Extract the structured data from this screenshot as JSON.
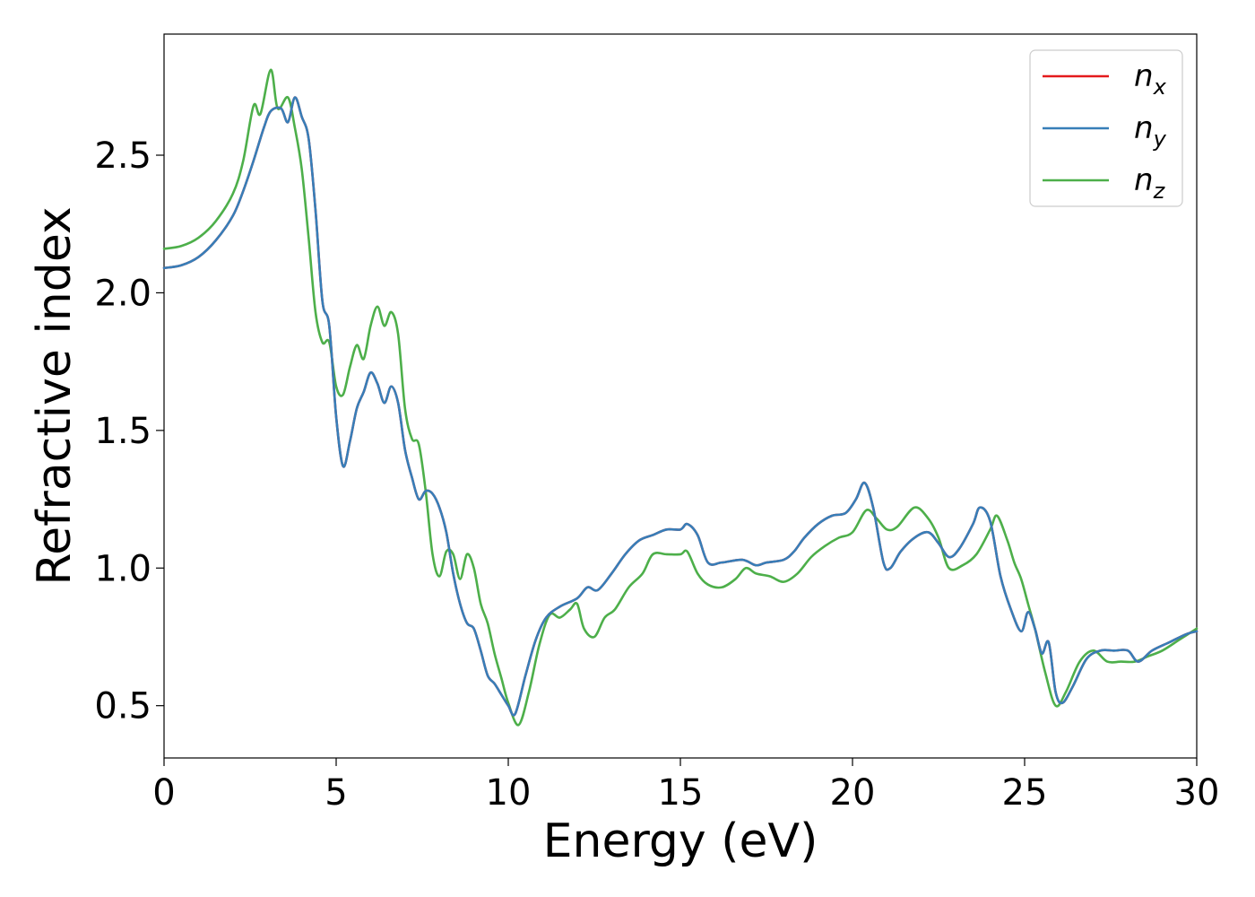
{
  "chart_data": {
    "type": "line",
    "title": "",
    "xlabel": "Energy (eV)",
    "ylabel": "Refractive index",
    "xlim": [
      0,
      30
    ],
    "ylim": [
      0.31,
      2.94
    ],
    "xticks": [
      0,
      5,
      10,
      15,
      20,
      25,
      30
    ],
    "yticks": [
      0.5,
      1.0,
      1.5,
      2.0,
      2.5
    ],
    "xtick_labels": [
      "0",
      "5",
      "10",
      "15",
      "20",
      "25",
      "30"
    ],
    "ytick_labels": [
      "0.5",
      "1.0",
      "1.5",
      "2.0",
      "2.5"
    ],
    "grid": false,
    "legend_position": "top-right",
    "series": [
      {
        "name": "n_x",
        "label_main": "n",
        "label_sub": "x",
        "color": "#e41a1c",
        "points": [
          [
            0,
            2.09
          ],
          [
            0.5,
            2.1
          ],
          [
            1,
            2.13
          ],
          [
            1.5,
            2.19
          ],
          [
            2,
            2.28
          ],
          [
            2.3,
            2.37
          ],
          [
            2.6,
            2.48
          ],
          [
            2.9,
            2.6
          ],
          [
            3.1,
            2.66
          ],
          [
            3.4,
            2.67
          ],
          [
            3.6,
            2.62
          ],
          [
            3.8,
            2.71
          ],
          [
            4.0,
            2.64
          ],
          [
            4.2,
            2.56
          ],
          [
            4.4,
            2.3
          ],
          [
            4.6,
            1.97
          ],
          [
            4.8,
            1.88
          ],
          [
            5.0,
            1.55
          ],
          [
            5.2,
            1.37
          ],
          [
            5.4,
            1.46
          ],
          [
            5.6,
            1.58
          ],
          [
            5.8,
            1.64
          ],
          [
            6.0,
            1.71
          ],
          [
            6.2,
            1.67
          ],
          [
            6.4,
            1.6
          ],
          [
            6.6,
            1.66
          ],
          [
            6.8,
            1.6
          ],
          [
            7.0,
            1.43
          ],
          [
            7.2,
            1.33
          ],
          [
            7.4,
            1.25
          ],
          [
            7.6,
            1.28
          ],
          [
            7.8,
            1.27
          ],
          [
            8.0,
            1.22
          ],
          [
            8.2,
            1.13
          ],
          [
            8.4,
            0.98
          ],
          [
            8.6,
            0.87
          ],
          [
            8.8,
            0.8
          ],
          [
            9.0,
            0.78
          ],
          [
            9.2,
            0.7
          ],
          [
            9.4,
            0.61
          ],
          [
            9.6,
            0.58
          ],
          [
            9.8,
            0.54
          ],
          [
            10.0,
            0.5
          ],
          [
            10.2,
            0.47
          ],
          [
            10.5,
            0.61
          ],
          [
            10.8,
            0.74
          ],
          [
            11.1,
            0.82
          ],
          [
            11.5,
            0.86
          ],
          [
            12.0,
            0.89
          ],
          [
            12.3,
            0.93
          ],
          [
            12.6,
            0.92
          ],
          [
            13.0,
            0.98
          ],
          [
            13.4,
            1.05
          ],
          [
            13.8,
            1.1
          ],
          [
            14.2,
            1.12
          ],
          [
            14.6,
            1.14
          ],
          [
            15.0,
            1.14
          ],
          [
            15.2,
            1.16
          ],
          [
            15.5,
            1.12
          ],
          [
            15.8,
            1.02
          ],
          [
            16.2,
            1.02
          ],
          [
            16.8,
            1.03
          ],
          [
            17.2,
            1.01
          ],
          [
            17.5,
            1.02
          ],
          [
            18.0,
            1.03
          ],
          [
            18.3,
            1.06
          ],
          [
            18.6,
            1.11
          ],
          [
            19.0,
            1.16
          ],
          [
            19.4,
            1.19
          ],
          [
            19.8,
            1.2
          ],
          [
            20.1,
            1.25
          ],
          [
            20.35,
            1.31
          ],
          [
            20.6,
            1.22
          ],
          [
            20.9,
            1.02
          ],
          [
            21.1,
            1.0
          ],
          [
            21.4,
            1.06
          ],
          [
            21.8,
            1.11
          ],
          [
            22.2,
            1.13
          ],
          [
            22.5,
            1.09
          ],
          [
            22.8,
            1.04
          ],
          [
            23.1,
            1.07
          ],
          [
            23.5,
            1.16
          ],
          [
            23.7,
            1.22
          ],
          [
            24.0,
            1.17
          ],
          [
            24.3,
            0.97
          ],
          [
            24.6,
            0.85
          ],
          [
            24.9,
            0.77
          ],
          [
            25.1,
            0.84
          ],
          [
            25.3,
            0.78
          ],
          [
            25.5,
            0.69
          ],
          [
            25.7,
            0.73
          ],
          [
            25.9,
            0.55
          ],
          [
            26.1,
            0.51
          ],
          [
            26.4,
            0.57
          ],
          [
            26.8,
            0.67
          ],
          [
            27.2,
            0.7
          ],
          [
            27.6,
            0.7
          ],
          [
            28.0,
            0.7
          ],
          [
            28.3,
            0.66
          ],
          [
            28.7,
            0.7
          ],
          [
            29.2,
            0.73
          ],
          [
            29.7,
            0.76
          ],
          [
            30.0,
            0.77
          ]
        ]
      },
      {
        "name": "n_y",
        "label_main": "n",
        "label_sub": "y",
        "color": "#377eb8",
        "points": [
          [
            0,
            2.09
          ],
          [
            0.5,
            2.1
          ],
          [
            1,
            2.13
          ],
          [
            1.5,
            2.19
          ],
          [
            2,
            2.28
          ],
          [
            2.3,
            2.37
          ],
          [
            2.6,
            2.48
          ],
          [
            2.9,
            2.6
          ],
          [
            3.1,
            2.66
          ],
          [
            3.4,
            2.67
          ],
          [
            3.6,
            2.62
          ],
          [
            3.8,
            2.71
          ],
          [
            4.0,
            2.64
          ],
          [
            4.2,
            2.56
          ],
          [
            4.4,
            2.3
          ],
          [
            4.6,
            1.97
          ],
          [
            4.8,
            1.88
          ],
          [
            5.0,
            1.55
          ],
          [
            5.2,
            1.37
          ],
          [
            5.4,
            1.46
          ],
          [
            5.6,
            1.58
          ],
          [
            5.8,
            1.64
          ],
          [
            6.0,
            1.71
          ],
          [
            6.2,
            1.67
          ],
          [
            6.4,
            1.6
          ],
          [
            6.6,
            1.66
          ],
          [
            6.8,
            1.6
          ],
          [
            7.0,
            1.43
          ],
          [
            7.2,
            1.33
          ],
          [
            7.4,
            1.25
          ],
          [
            7.6,
            1.28
          ],
          [
            7.8,
            1.27
          ],
          [
            8.0,
            1.22
          ],
          [
            8.2,
            1.13
          ],
          [
            8.4,
            0.98
          ],
          [
            8.6,
            0.87
          ],
          [
            8.8,
            0.8
          ],
          [
            9.0,
            0.78
          ],
          [
            9.2,
            0.7
          ],
          [
            9.4,
            0.61
          ],
          [
            9.6,
            0.58
          ],
          [
            9.8,
            0.54
          ],
          [
            10.0,
            0.5
          ],
          [
            10.2,
            0.47
          ],
          [
            10.5,
            0.61
          ],
          [
            10.8,
            0.74
          ],
          [
            11.1,
            0.82
          ],
          [
            11.5,
            0.86
          ],
          [
            12.0,
            0.89
          ],
          [
            12.3,
            0.93
          ],
          [
            12.6,
            0.92
          ],
          [
            13.0,
            0.98
          ],
          [
            13.4,
            1.05
          ],
          [
            13.8,
            1.1
          ],
          [
            14.2,
            1.12
          ],
          [
            14.6,
            1.14
          ],
          [
            15.0,
            1.14
          ],
          [
            15.2,
            1.16
          ],
          [
            15.5,
            1.12
          ],
          [
            15.8,
            1.02
          ],
          [
            16.2,
            1.02
          ],
          [
            16.8,
            1.03
          ],
          [
            17.2,
            1.01
          ],
          [
            17.5,
            1.02
          ],
          [
            18.0,
            1.03
          ],
          [
            18.3,
            1.06
          ],
          [
            18.6,
            1.11
          ],
          [
            19.0,
            1.16
          ],
          [
            19.4,
            1.19
          ],
          [
            19.8,
            1.2
          ],
          [
            20.1,
            1.25
          ],
          [
            20.35,
            1.31
          ],
          [
            20.6,
            1.22
          ],
          [
            20.9,
            1.02
          ],
          [
            21.1,
            1.0
          ],
          [
            21.4,
            1.06
          ],
          [
            21.8,
            1.11
          ],
          [
            22.2,
            1.13
          ],
          [
            22.5,
            1.09
          ],
          [
            22.8,
            1.04
          ],
          [
            23.1,
            1.07
          ],
          [
            23.5,
            1.16
          ],
          [
            23.7,
            1.22
          ],
          [
            24.0,
            1.17
          ],
          [
            24.3,
            0.97
          ],
          [
            24.6,
            0.85
          ],
          [
            24.9,
            0.77
          ],
          [
            25.1,
            0.84
          ],
          [
            25.3,
            0.78
          ],
          [
            25.5,
            0.69
          ],
          [
            25.7,
            0.73
          ],
          [
            25.9,
            0.55
          ],
          [
            26.1,
            0.51
          ],
          [
            26.4,
            0.57
          ],
          [
            26.8,
            0.67
          ],
          [
            27.2,
            0.7
          ],
          [
            27.6,
            0.7
          ],
          [
            28.0,
            0.7
          ],
          [
            28.3,
            0.66
          ],
          [
            28.7,
            0.7
          ],
          [
            29.2,
            0.73
          ],
          [
            29.7,
            0.76
          ],
          [
            30.0,
            0.77
          ]
        ]
      },
      {
        "name": "n_z",
        "label_main": "n",
        "label_sub": "z",
        "color": "#4daf4a",
        "points": [
          [
            0,
            2.16
          ],
          [
            0.5,
            2.17
          ],
          [
            1,
            2.2
          ],
          [
            1.5,
            2.26
          ],
          [
            2,
            2.36
          ],
          [
            2.3,
            2.48
          ],
          [
            2.6,
            2.68
          ],
          [
            2.8,
            2.65
          ],
          [
            3.1,
            2.81
          ],
          [
            3.3,
            2.67
          ],
          [
            3.6,
            2.71
          ],
          [
            3.8,
            2.6
          ],
          [
            4.0,
            2.45
          ],
          [
            4.2,
            2.2
          ],
          [
            4.4,
            1.93
          ],
          [
            4.6,
            1.82
          ],
          [
            4.8,
            1.82
          ],
          [
            5.0,
            1.66
          ],
          [
            5.2,
            1.63
          ],
          [
            5.4,
            1.73
          ],
          [
            5.6,
            1.81
          ],
          [
            5.8,
            1.76
          ],
          [
            6.0,
            1.88
          ],
          [
            6.2,
            1.95
          ],
          [
            6.4,
            1.88
          ],
          [
            6.6,
            1.93
          ],
          [
            6.8,
            1.85
          ],
          [
            7.0,
            1.58
          ],
          [
            7.2,
            1.47
          ],
          [
            7.4,
            1.45
          ],
          [
            7.6,
            1.28
          ],
          [
            7.8,
            1.05
          ],
          [
            8.0,
            0.97
          ],
          [
            8.2,
            1.06
          ],
          [
            8.4,
            1.05
          ],
          [
            8.6,
            0.96
          ],
          [
            8.8,
            1.05
          ],
          [
            9.0,
            1.0
          ],
          [
            9.2,
            0.87
          ],
          [
            9.4,
            0.8
          ],
          [
            9.6,
            0.69
          ],
          [
            9.8,
            0.6
          ],
          [
            10.0,
            0.51
          ],
          [
            10.3,
            0.43
          ],
          [
            10.6,
            0.55
          ],
          [
            10.9,
            0.72
          ],
          [
            11.2,
            0.83
          ],
          [
            11.5,
            0.82
          ],
          [
            11.8,
            0.85
          ],
          [
            12.0,
            0.87
          ],
          [
            12.2,
            0.78
          ],
          [
            12.5,
            0.75
          ],
          [
            12.8,
            0.82
          ],
          [
            13.1,
            0.85
          ],
          [
            13.5,
            0.93
          ],
          [
            13.9,
            0.98
          ],
          [
            14.2,
            1.05
          ],
          [
            14.6,
            1.05
          ],
          [
            15.0,
            1.05
          ],
          [
            15.2,
            1.06
          ],
          [
            15.5,
            0.98
          ],
          [
            15.8,
            0.94
          ],
          [
            16.2,
            0.93
          ],
          [
            16.6,
            0.96
          ],
          [
            16.9,
            1.0
          ],
          [
            17.2,
            0.98
          ],
          [
            17.6,
            0.97
          ],
          [
            18.0,
            0.95
          ],
          [
            18.4,
            0.98
          ],
          [
            18.8,
            1.04
          ],
          [
            19.2,
            1.08
          ],
          [
            19.6,
            1.11
          ],
          [
            20.0,
            1.13
          ],
          [
            20.4,
            1.21
          ],
          [
            20.7,
            1.18
          ],
          [
            21.0,
            1.14
          ],
          [
            21.3,
            1.15
          ],
          [
            21.8,
            1.22
          ],
          [
            22.2,
            1.18
          ],
          [
            22.5,
            1.11
          ],
          [
            22.8,
            1.0
          ],
          [
            23.2,
            1.01
          ],
          [
            23.6,
            1.05
          ],
          [
            24.0,
            1.14
          ],
          [
            24.2,
            1.19
          ],
          [
            24.5,
            1.1
          ],
          [
            24.7,
            1.02
          ],
          [
            24.9,
            0.96
          ],
          [
            25.1,
            0.87
          ],
          [
            25.3,
            0.78
          ],
          [
            25.6,
            0.62
          ],
          [
            25.9,
            0.5
          ],
          [
            26.2,
            0.55
          ],
          [
            26.6,
            0.66
          ],
          [
            27.0,
            0.7
          ],
          [
            27.4,
            0.66
          ],
          [
            27.8,
            0.66
          ],
          [
            28.2,
            0.66
          ],
          [
            28.6,
            0.68
          ],
          [
            29.0,
            0.7
          ],
          [
            29.5,
            0.74
          ],
          [
            30.0,
            0.78
          ]
        ]
      }
    ]
  }
}
